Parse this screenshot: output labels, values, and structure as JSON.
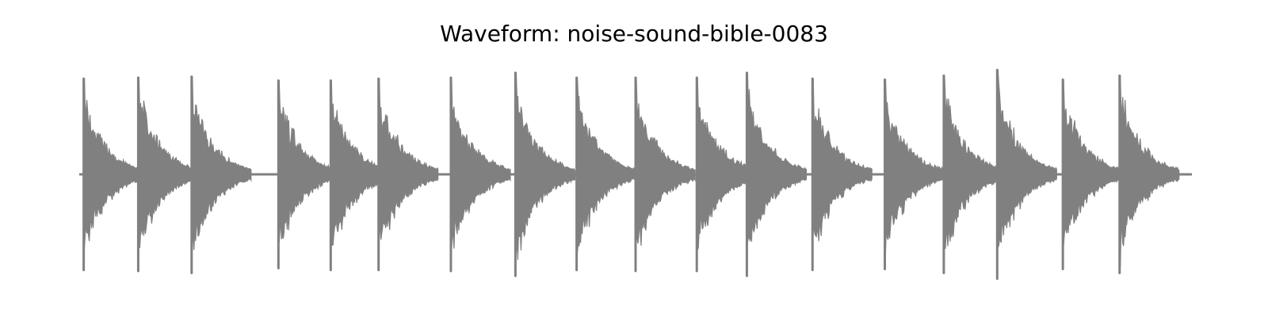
{
  "chart_data": {
    "type": "area",
    "title": "Waveform: noise-sound-bible-0083",
    "xlabel": "",
    "ylabel": "",
    "axes_visible": false,
    "grid": false,
    "legend": "none",
    "color": "#808080",
    "ylim": [
      -1.0,
      1.0
    ],
    "x": [
      0.0,
      1.0
    ],
    "bursts": [
      {
        "onset": 0.004,
        "peak_pos": 0.99,
        "peak_neg": -0.99
      },
      {
        "onset": 0.053,
        "peak_pos": 1.0,
        "peak_neg": -1.0
      },
      {
        "onset": 0.101,
        "peak_pos": 1.01,
        "peak_neg": -1.02
      },
      {
        "onset": 0.179,
        "peak_pos": 0.97,
        "peak_neg": -0.97
      },
      {
        "onset": 0.226,
        "peak_pos": 0.97,
        "peak_neg": -0.99
      },
      {
        "onset": 0.269,
        "peak_pos": 0.99,
        "peak_neg": -0.99
      },
      {
        "onset": 0.334,
        "peak_pos": 1.0,
        "peak_neg": -1.0
      },
      {
        "onset": 0.392,
        "peak_pos": 1.05,
        "peak_neg": -1.05
      },
      {
        "onset": 0.447,
        "peak_pos": 1.0,
        "peak_neg": -0.99
      },
      {
        "onset": 0.5,
        "peak_pos": 1.0,
        "peak_neg": -1.0
      },
      {
        "onset": 0.555,
        "peak_pos": 1.0,
        "peak_neg": -1.0
      },
      {
        "onset": 0.6,
        "peak_pos": 1.05,
        "peak_neg": -1.05
      },
      {
        "onset": 0.659,
        "peak_pos": 0.99,
        "peak_neg": -0.99
      },
      {
        "onset": 0.724,
        "peak_pos": 0.98,
        "peak_neg": -0.98
      },
      {
        "onset": 0.777,
        "peak_pos": 1.02,
        "peak_neg": -1.02
      },
      {
        "onset": 0.825,
        "peak_pos": 1.08,
        "peak_neg": -1.08
      },
      {
        "onset": 0.884,
        "peak_pos": 0.98,
        "peak_neg": -0.98
      },
      {
        "onset": 0.935,
        "peak_pos": 1.02,
        "peak_neg": -1.02
      }
    ]
  }
}
